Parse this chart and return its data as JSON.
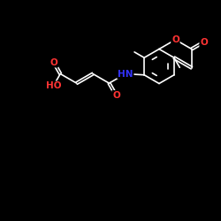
{
  "bg_color": "#000000",
  "bond_color": "#ffffff",
  "O_color": "#ff3333",
  "N_color": "#3333ff",
  "bond_width": 1.2,
  "font_size": 7.5,
  "fig_size": [
    2.5,
    2.5
  ],
  "dpi": 100,
  "xlim": [
    0,
    10
  ],
  "ylim": [
    0,
    10
  ]
}
